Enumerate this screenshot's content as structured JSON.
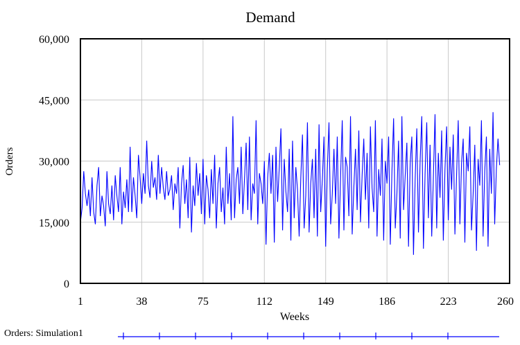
{
  "chart_data": {
    "type": "line",
    "title": "Demand",
    "xlabel": "Weeks",
    "ylabel": "Orders",
    "xlim": [
      1,
      260
    ],
    "ylim": [
      0,
      60000
    ],
    "x_ticks": [
      "1",
      "38",
      "75",
      "112",
      "149",
      "186",
      "223",
      "260"
    ],
    "y_ticks": [
      "0",
      "15,000",
      "30,000",
      "45,000",
      "60,000"
    ],
    "grid": true,
    "legend_position": "bottom-left",
    "series": [
      {
        "name": "Orders: Simulation1",
        "color": "#0000ff",
        "x_start": 1,
        "x_step": 1,
        "values": [
          15000,
          18500,
          27500,
          22000,
          19000,
          23000,
          16500,
          26000,
          17500,
          14500,
          24000,
          28500,
          16500,
          21500,
          19000,
          14000,
          27500,
          19500,
          17000,
          24000,
          15500,
          26500,
          21500,
          17500,
          28500,
          14500,
          22500,
          18500,
          25500,
          17500,
          33500,
          17500,
          26000,
          21500,
          16000,
          31500,
          26000,
          19500,
          27000,
          22000,
          35000,
          24000,
          21000,
          30000,
          23500,
          26000,
          20500,
          31500,
          22000,
          28500,
          23500,
          20500,
          27500,
          21500,
          23000,
          26500,
          18000,
          24500,
          22000,
          28500,
          13500,
          24500,
          29000,
          19500,
          25500,
          16000,
          31000,
          12500,
          24000,
          19000,
          29500,
          21500,
          27000,
          17000,
          30500,
          14500,
          26500,
          23000,
          16000,
          28000,
          19500,
          31500,
          13500,
          24500,
          28500,
          17500,
          23500,
          14500,
          33500,
          19500,
          27000,
          15500,
          41000,
          16000,
          25500,
          28500,
          19500,
          33500,
          17000,
          25500,
          34500,
          18000,
          36000,
          15500,
          24500,
          22000,
          40000,
          14500,
          27000,
          24500,
          19500,
          30000,
          9500,
          26000,
          32000,
          22000,
          31500,
          10000,
          33500,
          20000,
          28500,
          38000,
          13000,
          30500,
          22500,
          17500,
          33000,
          10500,
          35000,
          16000,
          28500,
          23000,
          11500,
          26000,
          36500,
          13500,
          21500,
          39500,
          12500,
          24500,
          30500,
          16000,
          33000,
          11500,
          39000,
          17500,
          25500,
          36000,
          9000,
          28000,
          39500,
          14500,
          22000,
          33000,
          19500,
          36000,
          11000,
          26000,
          40000,
          13000,
          31000,
          28500,
          16500,
          41000,
          12000,
          23500,
          33000,
          18000,
          37500,
          15000,
          26500,
          35500,
          20500,
          32000,
          13500,
          38500,
          23500,
          17500,
          40000,
          11500,
          28000,
          21500,
          35500,
          10500,
          30000,
          24500,
          36000,
          9500,
          27500,
          40500,
          13500,
          22000,
          35000,
          11000,
          41000,
          18000,
          26500,
          34500,
          9000,
          29500,
          36000,
          7000,
          25500,
          38000,
          12500,
          30000,
          41000,
          8500,
          27000,
          39500,
          16000,
          34000,
          11500,
          26000,
          41500,
          13500,
          32000,
          21000,
          37500,
          10500,
          28000,
          38500,
          15500,
          33500,
          23000,
          36500,
          12000,
          26500,
          40000,
          14500,
          29500,
          35500,
          10000,
          32000,
          27500,
          38500,
          13000,
          22000,
          34000,
          8000,
          30500,
          24000,
          40000,
          11500,
          27500,
          36000,
          9000,
          33000,
          22000,
          42000,
          14500,
          28000,
          35500,
          29000
        ]
      }
    ]
  }
}
